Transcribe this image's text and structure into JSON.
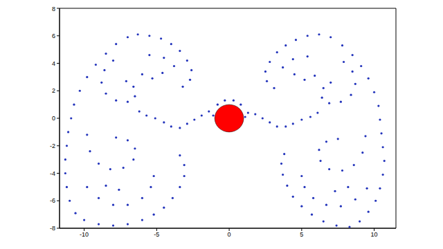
{
  "chart_data": {
    "type": "scatter",
    "xlim": [
      -11.7,
      11.5
    ],
    "ylim": [
      -8,
      8
    ],
    "xticks": [
      -10,
      -5,
      0,
      5,
      10
    ],
    "yticks": [
      -8,
      -6,
      -4,
      -2,
      0,
      2,
      4,
      6,
      8
    ],
    "grid": false,
    "series": [
      {
        "color": "#2233bb",
        "marker": "dot",
        "points": [
          [
            -6.3,
            6.1
          ],
          [
            -7.0,
            5.9
          ],
          [
            -7.8,
            5.4
          ],
          [
            -8.5,
            4.7
          ],
          [
            -9.2,
            3.9
          ],
          [
            -9.8,
            3.0
          ],
          [
            -10.3,
            2.0
          ],
          [
            -10.7,
            1.0
          ],
          [
            -10.9,
            0.0
          ],
          [
            -11.1,
            -1.0
          ],
          [
            -11.2,
            -2.0
          ],
          [
            -11.3,
            -3.0
          ],
          [
            -11.3,
            -4.0
          ],
          [
            -11.2,
            -5.0
          ],
          [
            -11.0,
            -6.0
          ],
          [
            -10.6,
            -6.9
          ],
          [
            -10.0,
            -7.4
          ],
          [
            -9.0,
            -7.7
          ],
          [
            -8.0,
            -7.8
          ],
          [
            -7.0,
            -7.7
          ],
          [
            -6.0,
            -7.4
          ],
          [
            -5.2,
            -7.0
          ],
          [
            -4.5,
            -6.5
          ],
          [
            -3.9,
            -5.8
          ],
          [
            -3.4,
            -5.0
          ],
          [
            -3.1,
            -4.2
          ],
          [
            -3.1,
            -3.4
          ],
          [
            -3.4,
            -2.7
          ],
          [
            -5.5,
            6.0
          ],
          [
            -4.7,
            5.8
          ],
          [
            -4.0,
            5.4
          ],
          [
            -3.4,
            4.9
          ],
          [
            -2.9,
            4.2
          ],
          [
            -2.6,
            3.5
          ],
          [
            -2.7,
            2.8
          ],
          [
            -3.2,
            2.3
          ],
          [
            -8.0,
            4.2
          ],
          [
            -8.6,
            3.5
          ],
          [
            -8.8,
            2.6
          ],
          [
            -8.5,
            1.8
          ],
          [
            -7.8,
            1.3
          ],
          [
            -7.0,
            1.2
          ],
          [
            -6.5,
            1.6
          ],
          [
            -6.6,
            2.3
          ],
          [
            -7.1,
            2.7
          ],
          [
            -5.5,
            4.6
          ],
          [
            -4.5,
            4.4
          ],
          [
            -3.8,
            3.8
          ],
          [
            -4.6,
            3.3
          ],
          [
            -5.3,
            2.9
          ],
          [
            -6.0,
            3.2
          ],
          [
            -9.8,
            -1.2
          ],
          [
            -9.6,
            -2.4
          ],
          [
            -9.0,
            -3.3
          ],
          [
            -8.2,
            -3.7
          ],
          [
            -7.3,
            -3.6
          ],
          [
            -6.6,
            -3.0
          ],
          [
            -6.5,
            -2.2
          ],
          [
            -7.0,
            -1.6
          ],
          [
            -7.8,
            -1.4
          ],
          [
            -9.8,
            -5.0
          ],
          [
            -9.0,
            -5.8
          ],
          [
            -8.0,
            -6.3
          ],
          [
            -7.0,
            -6.3
          ],
          [
            -6.0,
            -5.8
          ],
          [
            -5.4,
            -5.0
          ],
          [
            -5.2,
            -4.2
          ],
          [
            -8.5,
            -4.9
          ],
          [
            -7.6,
            -5.2
          ],
          [
            -6.2,
            0.5
          ],
          [
            -5.7,
            0.2
          ],
          [
            -5.1,
            0.0
          ],
          [
            -4.5,
            -0.3
          ],
          [
            -4.0,
            -0.6
          ],
          [
            -3.4,
            -0.7
          ],
          [
            -2.9,
            -0.4
          ],
          [
            -2.4,
            -0.1
          ],
          [
            -1.9,
            0.2
          ],
          [
            -1.4,
            0.5
          ],
          [
            -1.1,
            0.2
          ],
          [
            -0.8,
            1.0
          ],
          [
            -0.3,
            1.3
          ],
          [
            0.3,
            1.3
          ],
          [
            0.8,
            1.0
          ],
          [
            6.2,
            6.1
          ],
          [
            7.0,
            5.9
          ],
          [
            7.8,
            5.3
          ],
          [
            8.5,
            4.6
          ],
          [
            9.1,
            3.8
          ],
          [
            9.6,
            2.9
          ],
          [
            10.0,
            1.9
          ],
          [
            10.3,
            0.9
          ],
          [
            10.4,
            -0.1
          ],
          [
            10.5,
            -1.1
          ],
          [
            10.6,
            -2.1
          ],
          [
            10.7,
            -3.1
          ],
          [
            10.6,
            -4.1
          ],
          [
            10.4,
            -5.1
          ],
          [
            10.1,
            -6.0
          ],
          [
            9.6,
            -6.8
          ],
          [
            9.0,
            -7.5
          ],
          [
            8.3,
            -7.9
          ],
          [
            7.4,
            -7.8
          ],
          [
            6.5,
            -7.5
          ],
          [
            5.7,
            -7.0
          ],
          [
            5.0,
            -6.4
          ],
          [
            4.4,
            -5.7
          ],
          [
            4.0,
            -4.9
          ],
          [
            3.7,
            -4.1
          ],
          [
            3.6,
            -3.3
          ],
          [
            3.8,
            -2.6
          ],
          [
            5.4,
            6.0
          ],
          [
            4.6,
            5.7
          ],
          [
            3.9,
            5.3
          ],
          [
            3.3,
            4.8
          ],
          [
            2.8,
            4.1
          ],
          [
            2.5,
            3.4
          ],
          [
            2.6,
            2.7
          ],
          [
            3.1,
            2.2
          ],
          [
            7.9,
            4.1
          ],
          [
            8.5,
            3.4
          ],
          [
            8.7,
            2.5
          ],
          [
            8.4,
            1.7
          ],
          [
            7.7,
            1.2
          ],
          [
            6.9,
            1.1
          ],
          [
            6.4,
            1.5
          ],
          [
            6.5,
            2.2
          ],
          [
            7.0,
            2.6
          ],
          [
            5.4,
            4.5
          ],
          [
            4.4,
            4.3
          ],
          [
            3.7,
            3.7
          ],
          [
            4.5,
            3.2
          ],
          [
            5.2,
            2.8
          ],
          [
            5.9,
            3.1
          ],
          [
            9.4,
            -1.3
          ],
          [
            9.2,
            -2.5
          ],
          [
            8.6,
            -3.4
          ],
          [
            7.8,
            -3.8
          ],
          [
            6.9,
            -3.7
          ],
          [
            6.3,
            -3.1
          ],
          [
            6.2,
            -2.3
          ],
          [
            6.7,
            -1.7
          ],
          [
            7.5,
            -1.5
          ],
          [
            9.5,
            -5.1
          ],
          [
            8.7,
            -5.9
          ],
          [
            7.7,
            -6.4
          ],
          [
            6.7,
            -6.3
          ],
          [
            5.8,
            -5.8
          ],
          [
            5.2,
            -5.0
          ],
          [
            5.0,
            -4.2
          ],
          [
            8.2,
            -5.0
          ],
          [
            7.3,
            -5.3
          ],
          [
            6.1,
            0.4
          ],
          [
            5.6,
            0.1
          ],
          [
            5.0,
            -0.1
          ],
          [
            4.4,
            -0.4
          ],
          [
            3.9,
            -0.6
          ],
          [
            3.3,
            -0.6
          ],
          [
            2.8,
            -0.3
          ],
          [
            2.3,
            0.0
          ],
          [
            1.8,
            0.3
          ],
          [
            1.3,
            0.4
          ],
          [
            1.1,
            0.1
          ]
        ]
      }
    ],
    "cylinder": {
      "x": 0,
      "y": 0,
      "radius": 1,
      "color": "#ff0000"
    }
  }
}
